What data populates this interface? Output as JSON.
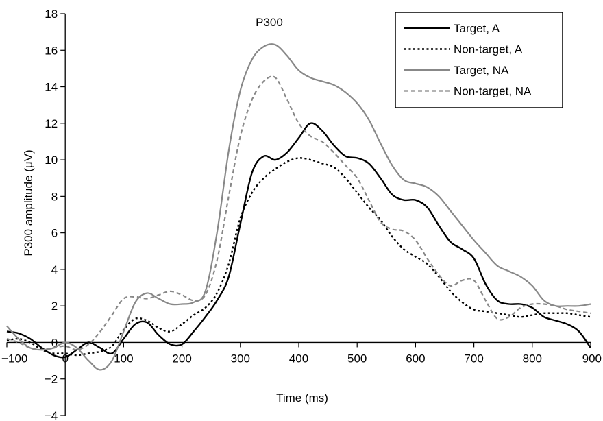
{
  "chart_data": {
    "type": "line",
    "xlabel": "Time (ms)",
    "ylabel": "P300 amplitude (μV)",
    "xlim": [
      -100,
      900
    ],
    "ylim": [
      -4,
      18
    ],
    "x_ticks": [
      -100,
      0,
      100,
      200,
      300,
      400,
      500,
      600,
      700,
      800,
      900
    ],
    "y_ticks": [
      -4,
      -2,
      0,
      2,
      4,
      6,
      8,
      10,
      12,
      14,
      16,
      18
    ],
    "x_tick_labels": [
      "−100",
      "0",
      "100",
      "200",
      "300",
      "400",
      "500",
      "600",
      "700",
      "800",
      "900"
    ],
    "y_tick_labels": [
      "−4",
      "−2",
      "0",
      "2",
      "4",
      "6",
      "8",
      "10",
      "12",
      "14",
      "16",
      "18"
    ],
    "grid": false,
    "legend_position": "top-right",
    "annotation": "P300",
    "series": [
      {
        "name": "Target, A",
        "color": "#000000",
        "dash": "solid",
        "x": [
          -100,
          -80,
          -60,
          -40,
          -20,
          0,
          20,
          40,
          60,
          80,
          100,
          120,
          140,
          160,
          180,
          200,
          220,
          240,
          260,
          280,
          300,
          320,
          340,
          360,
          380,
          400,
          420,
          440,
          460,
          480,
          500,
          520,
          540,
          560,
          580,
          600,
          620,
          640,
          660,
          680,
          700,
          720,
          740,
          760,
          780,
          800,
          820,
          840,
          860,
          880,
          900
        ],
        "y": [
          0.6,
          0.5,
          0.2,
          -0.3,
          -0.7,
          -0.8,
          -0.4,
          0.0,
          -0.3,
          -0.6,
          0.2,
          1.0,
          1.1,
          0.4,
          -0.1,
          -0.1,
          0.6,
          1.4,
          2.3,
          3.6,
          6.5,
          9.3,
          10.2,
          10.0,
          10.4,
          11.2,
          12.0,
          11.6,
          10.8,
          10.2,
          10.1,
          9.8,
          9.0,
          8.1,
          7.8,
          7.8,
          7.4,
          6.4,
          5.5,
          5.1,
          4.6,
          3.2,
          2.3,
          2.1,
          2.1,
          1.9,
          1.4,
          1.2,
          1.0,
          0.6,
          -0.3
        ]
      },
      {
        "name": "Non-target, A",
        "color": "#000000",
        "dash": "dotted",
        "x": [
          -100,
          -80,
          -60,
          -40,
          -20,
          0,
          20,
          40,
          60,
          80,
          100,
          120,
          140,
          160,
          180,
          200,
          220,
          240,
          260,
          280,
          300,
          320,
          340,
          360,
          380,
          400,
          420,
          440,
          460,
          480,
          500,
          520,
          540,
          560,
          580,
          600,
          620,
          640,
          660,
          680,
          700,
          720,
          740,
          760,
          780,
          800,
          820,
          840,
          860,
          880,
          900
        ],
        "y": [
          0.1,
          0.2,
          0.0,
          -0.4,
          -0.6,
          -0.6,
          -0.7,
          -0.6,
          -0.5,
          -0.2,
          0.7,
          1.3,
          1.2,
          0.8,
          0.6,
          1.0,
          1.5,
          1.9,
          2.7,
          4.3,
          6.8,
          8.2,
          9.0,
          9.5,
          9.9,
          10.1,
          10.0,
          9.8,
          9.6,
          9.0,
          8.2,
          7.4,
          6.7,
          5.8,
          5.1,
          4.7,
          4.3,
          3.6,
          2.8,
          2.2,
          1.8,
          1.7,
          1.6,
          1.5,
          1.4,
          1.5,
          1.6,
          1.6,
          1.6,
          1.5,
          1.4
        ]
      },
      {
        "name": "Target, NA",
        "color": "#888888",
        "dash": "solid",
        "x": [
          -100,
          -80,
          -60,
          -40,
          -20,
          0,
          20,
          40,
          60,
          80,
          100,
          120,
          140,
          160,
          180,
          200,
          220,
          240,
          260,
          280,
          300,
          320,
          340,
          360,
          380,
          400,
          420,
          440,
          460,
          480,
          500,
          520,
          540,
          560,
          580,
          600,
          620,
          640,
          660,
          680,
          700,
          720,
          740,
          760,
          780,
          800,
          820,
          840,
          860,
          880,
          900
        ],
        "y": [
          0.9,
          0.2,
          -0.3,
          -0.4,
          -0.3,
          0.0,
          -0.3,
          -1.0,
          -1.5,
          -1.0,
          0.6,
          2.2,
          2.7,
          2.4,
          2.1,
          2.1,
          2.2,
          2.8,
          6.0,
          10.5,
          13.8,
          15.5,
          16.2,
          16.3,
          15.7,
          14.9,
          14.5,
          14.3,
          14.1,
          13.7,
          13.1,
          12.2,
          10.9,
          9.7,
          8.9,
          8.7,
          8.5,
          8.0,
          7.2,
          6.4,
          5.6,
          4.9,
          4.2,
          3.9,
          3.6,
          3.1,
          2.3,
          2.0,
          2.0,
          2.0,
          2.1
        ]
      },
      {
        "name": "Non-target, NA",
        "color": "#888888",
        "dash": "dashed",
        "x": [
          -100,
          -80,
          -60,
          -40,
          -20,
          0,
          20,
          40,
          60,
          80,
          100,
          120,
          140,
          160,
          180,
          200,
          220,
          240,
          260,
          280,
          300,
          320,
          340,
          360,
          380,
          400,
          420,
          440,
          460,
          480,
          500,
          520,
          540,
          560,
          580,
          600,
          620,
          640,
          660,
          680,
          700,
          720,
          740,
          760,
          780,
          800,
          820,
          840,
          860,
          880,
          900
        ],
        "y": [
          0.2,
          0.0,
          -0.3,
          -0.4,
          -0.3,
          -0.2,
          -0.4,
          -0.1,
          0.6,
          1.5,
          2.4,
          2.5,
          2.4,
          2.6,
          2.8,
          2.6,
          2.3,
          2.6,
          4.5,
          8.0,
          11.3,
          13.3,
          14.3,
          14.5,
          13.3,
          12.0,
          11.3,
          11.0,
          10.4,
          9.7,
          9.0,
          7.8,
          6.6,
          6.2,
          6.1,
          5.6,
          4.6,
          3.7,
          3.1,
          3.4,
          3.4,
          2.3,
          1.3,
          1.4,
          1.9,
          2.1,
          2.1,
          2.0,
          1.8,
          1.7,
          1.6
        ]
      }
    ]
  }
}
